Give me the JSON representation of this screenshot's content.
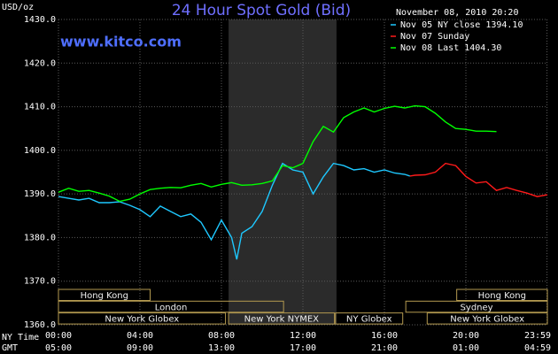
{
  "chart_data": {
    "type": "line",
    "title": "24 Hour Spot Gold (Bid)",
    "source": "www.kitco.com",
    "timestamp": "November 08, 2010 20:20",
    "ylabel": "USD/oz",
    "xlabel": "NY Time",
    "x2label": "GMT",
    "grid": true,
    "xlim": [
      0,
      24
    ],
    "ylim": [
      1360,
      1430
    ],
    "yticks": [
      {
        "value": 1360,
        "label": "1360.0"
      },
      {
        "value": 1370,
        "label": "1370.0"
      },
      {
        "value": 1380,
        "label": "1380.0"
      },
      {
        "value": 1390,
        "label": "1390.0"
      },
      {
        "value": 1400,
        "label": "1400.0"
      },
      {
        "value": 1410,
        "label": "1410.0"
      },
      {
        "value": 1420,
        "label": "1420.0"
      },
      {
        "value": 1430,
        "label": "1430.0"
      }
    ],
    "xticks": [
      {
        "value": 0,
        "label": "00:00"
      },
      {
        "value": 4,
        "label": "04:00"
      },
      {
        "value": 8,
        "label": "08:00"
      },
      {
        "value": 12,
        "label": "12:00"
      },
      {
        "value": 16,
        "label": "16:00"
      },
      {
        "value": 20,
        "label": "20:00"
      },
      {
        "value": 23.98,
        "label": "23:59"
      }
    ],
    "x2ticks": [
      {
        "value": 0,
        "label": "05:00"
      },
      {
        "value": 4,
        "label": "09:00"
      },
      {
        "value": 8,
        "label": "13:00"
      },
      {
        "value": 12,
        "label": "17:00"
      },
      {
        "value": 16,
        "label": "21:00"
      },
      {
        "value": 20,
        "label": "01:00"
      },
      {
        "value": 23.98,
        "label": "04:59"
      }
    ],
    "shaded_x": [
      8.35,
      13.65
    ],
    "series": [
      {
        "name": "Nov 05 NY close 1394.10",
        "color": "#1ec8ff",
        "x": [
          0,
          0.5,
          1,
          1.5,
          2,
          2.5,
          3,
          3.5,
          4,
          4.5,
          5,
          5.5,
          6,
          6.5,
          7,
          7.5,
          8,
          8.5,
          8.75,
          9,
          9.5,
          10,
          10.5,
          11,
          11.5,
          12,
          12.5,
          13,
          13.5,
          14,
          14.5,
          15,
          15.5,
          16,
          16.5,
          17,
          17.25
        ],
        "values": [
          1389.4,
          1389.0,
          1388.6,
          1389.0,
          1388.0,
          1388.0,
          1388.2,
          1387.4,
          1386.4,
          1384.8,
          1387.2,
          1386.0,
          1384.8,
          1385.4,
          1383.5,
          1379.5,
          1384.0,
          1380.0,
          1375.0,
          1381.0,
          1382.5,
          1386.0,
          1392.0,
          1397.0,
          1395.5,
          1395.0,
          1390.0,
          1393.9,
          1397.0,
          1396.5,
          1395.5,
          1395.8,
          1395.0,
          1395.5,
          1394.8,
          1394.5,
          1394.1
        ]
      },
      {
        "name": "Nov 07 Sunday",
        "color": "#ff1a1a",
        "x": [
          17.25,
          17.5,
          18,
          18.5,
          19,
          19.5,
          20,
          20.5,
          21,
          21.5,
          22,
          22.5,
          23,
          23.5,
          24
        ],
        "values": [
          1394.1,
          1394.3,
          1394.4,
          1395.0,
          1397.0,
          1396.5,
          1394.0,
          1392.5,
          1392.8,
          1390.8,
          1391.5,
          1390.8,
          1390.2,
          1389.4,
          1389.8
        ]
      },
      {
        "name": "Nov 08 Last 1404.30",
        "color": "#00ff00",
        "x": [
          0,
          0.5,
          1,
          1.5,
          2,
          2.5,
          3,
          3.5,
          4,
          4.5,
          5,
          5.5,
          6,
          6.5,
          7,
          7.5,
          8,
          8.5,
          9,
          9.5,
          10,
          10.5,
          11,
          11.5,
          12,
          12.5,
          13,
          13.5,
          14,
          14.5,
          15,
          15.5,
          16,
          16.5,
          17,
          17.5,
          18,
          18.5,
          19,
          19.5,
          20,
          20.5,
          21,
          21.5
        ],
        "values": [
          1390.4,
          1391.3,
          1390.6,
          1390.8,
          1390.2,
          1389.5,
          1388.3,
          1388.8,
          1390.0,
          1391.0,
          1391.3,
          1391.5,
          1391.4,
          1392.0,
          1392.4,
          1391.6,
          1392.2,
          1392.6,
          1392.0,
          1392.1,
          1392.4,
          1393.0,
          1396.5,
          1396.0,
          1397.0,
          1402.0,
          1405.5,
          1404.2,
          1407.5,
          1408.8,
          1409.7,
          1408.8,
          1409.6,
          1410.1,
          1409.7,
          1410.2,
          1410.0,
          1408.5,
          1406.5,
          1405.0,
          1404.8,
          1404.4,
          1404.4,
          1404.3
        ]
      }
    ],
    "sessions": [
      [
        {
          "label": "Hong Kong",
          "start": 0,
          "end": 4.5
        },
        {
          "label": "Hong Kong",
          "start": 19.55,
          "end": 24
        }
      ],
      [
        {
          "label": "London",
          "start": 0,
          "end": 11.05
        },
        {
          "label": "Sydney",
          "start": 17.05,
          "end": 24
        }
      ],
      [
        {
          "label": "New York Globex",
          "start": 0,
          "end": 8.2
        },
        {
          "label": "New York NYMEX",
          "start": 8.35,
          "end": 13.55
        },
        {
          "label": "NY Globex",
          "start": 13.6,
          "end": 16.9
        },
        {
          "label": "New York Globex",
          "start": 18.1,
          "end": 24
        }
      ]
    ]
  }
}
